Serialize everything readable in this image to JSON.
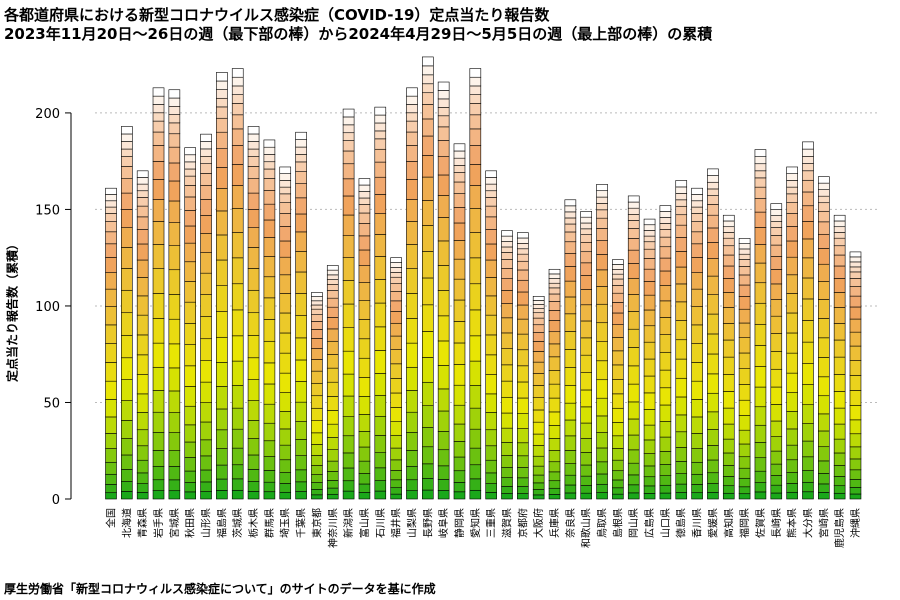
{
  "chart_data": {
    "type": "bar",
    "stacked": true,
    "title": "各都道府県における新型コロナウイルス感染症（COVID-19）定点当たり報告数",
    "subtitle": "2023年11月20日～26日の週（最下部の棒）から2024年4月29日～5月5日の週（最上部の棒）の累積",
    "ylabel": "定点当たり報告数（累積）",
    "ylim": [
      0,
      230
    ],
    "yticks": [
      0,
      50,
      100,
      150,
      200
    ],
    "grid": true,
    "categories": [
      "全国",
      "北海道",
      "青森県",
      "岩手県",
      "宮城県",
      "秋田県",
      "山形県",
      "福島県",
      "茨城県",
      "栃木県",
      "群馬県",
      "埼玉県",
      "千葉県",
      "東京都",
      "神奈川県",
      "新潟県",
      "富山県",
      "石川県",
      "福井県",
      "山梨県",
      "長野県",
      "岐阜県",
      "静岡県",
      "愛知県",
      "三重県",
      "滋賀県",
      "京都府",
      "大阪府",
      "兵庫県",
      "奈良県",
      "和歌山県",
      "鳥取県",
      "島根県",
      "岡山県",
      "広島県",
      "山口県",
      "徳島県",
      "香川県",
      "愛媛県",
      "高知県",
      "福岡県",
      "佐賀県",
      "長崎県",
      "熊本県",
      "大分県",
      "宮崎県",
      "鹿児島県",
      "沖縄県"
    ],
    "totals": [
      161,
      193,
      170,
      213,
      212,
      182,
      189,
      221,
      223,
      193,
      186,
      172,
      190,
      107,
      121,
      202,
      166,
      203,
      125,
      213,
      229,
      216,
      184,
      223,
      170,
      139,
      138,
      105,
      119,
      155,
      149,
      163,
      124,
      157,
      145,
      152,
      165,
      161,
      171,
      147,
      135,
      181,
      153,
      172,
      185,
      167,
      147,
      128
    ],
    "weeks": 24,
    "color_scale": [
      "#1aa81a",
      "#e8e800",
      "#f0a060",
      "#ffffff"
    ],
    "source": "厚生労働省「新型コロナウィルス感染症について」のサイトのデータを基に作成"
  }
}
